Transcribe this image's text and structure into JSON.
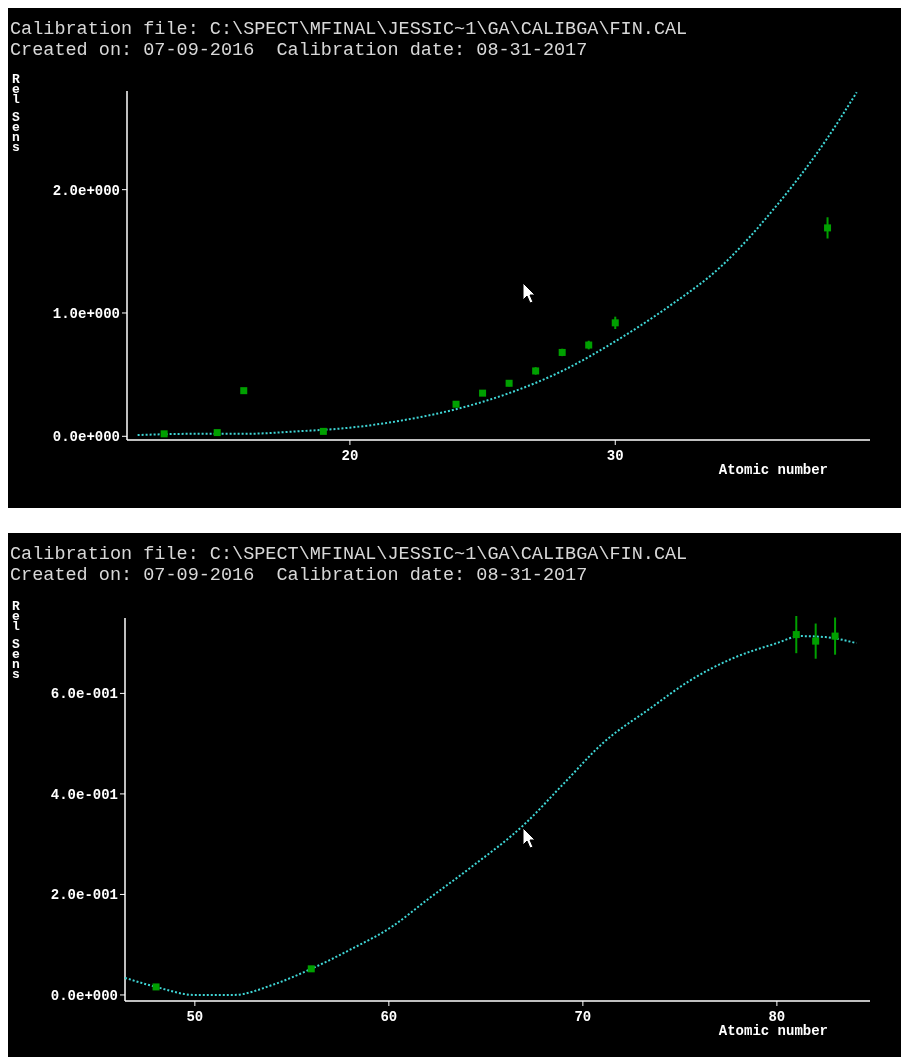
{
  "chart_data": [
    {
      "type": "scatter",
      "title": "Calibration file: C:\\SPECT\\MFINAL\\JESSIC~1\\GA\\CALIBGA\\FIN.CAL",
      "subtitle": "Created on: 07-09-2016  Calibration date: 08-31-2017",
      "xlabel": "Atomic number",
      "ylabel": "Rel Sens",
      "xlim": [
        11.6,
        39.6
      ],
      "xticks": [
        20,
        30
      ],
      "ylim": [
        -0.03,
        2.8
      ],
      "yticks": [
        {
          "value": 0,
          "label": "0.0e+000"
        },
        {
          "value": 1,
          "label": "1.0e+000"
        },
        {
          "value": 2,
          "label": "2.0e+000"
        }
      ],
      "grid": false,
      "series": [
        {
          "type": "line",
          "color": "#3fd6d6",
          "line_style": "dotted",
          "marker": "none",
          "x": [
            12,
            14,
            16,
            18,
            20,
            22,
            24,
            26,
            28,
            30,
            32,
            34,
            36,
            38,
            39.1
          ],
          "values": [
            0.01,
            0.02,
            0.02,
            0.04,
            0.07,
            0.13,
            0.22,
            0.35,
            0.53,
            0.77,
            1.05,
            1.38,
            1.85,
            2.42,
            2.79
          ]
        },
        {
          "color": "#00a000",
          "marker": "square",
          "x": [
            13,
            15,
            16,
            19,
            24,
            25,
            26,
            27,
            28,
            29,
            30,
            38
          ],
          "values": [
            0.02,
            0.03,
            0.37,
            0.04,
            0.26,
            0.35,
            0.43,
            0.53,
            0.68,
            0.74,
            0.92,
            1.69
          ],
          "errors": [
            null,
            null,
            0.02,
            null,
            null,
            0.02,
            0.025,
            0.03,
            0.03,
            0.035,
            0.05,
            0.086
          ]
        }
      ]
    },
    {
      "type": "scatter",
      "title": "Calibration file: C:\\SPECT\\MFINAL\\JESSIC~1\\GA\\CALIBGA\\FIN.CAL",
      "subtitle": "Created on: 07-09-2016  Calibration date: 08-31-2017",
      "xlabel": "Atomic number",
      "ylabel": "Rel Sens",
      "xlim": [
        46.4,
        84.8
      ],
      "xticks": [
        50,
        60,
        70,
        80
      ],
      "ylim": [
        -0.012,
        0.75
      ],
      "yticks": [
        {
          "value": 0,
          "label": "0.0e+000"
        },
        {
          "value": 0.2,
          "label": "2.0e-001"
        },
        {
          "value": 0.4,
          "label": "4.0e-001"
        },
        {
          "value": 0.6,
          "label": "6.0e-001"
        }
      ],
      "grid": false,
      "series": [
        {
          "type": "line",
          "color": "#3fd6d6",
          "line_style": "dotted",
          "marker": "none",
          "x": [
            46.4,
            48,
            50,
            52,
            54,
            56,
            58,
            60.2,
            62,
            64.2,
            67,
            69,
            71,
            73.5,
            75.5,
            77.8,
            80,
            81.2,
            82.5,
            84.1
          ],
          "values": [
            0.034,
            0.016,
            0.0,
            0.0,
            0.02,
            0.052,
            0.09,
            0.137,
            0.19,
            0.253,
            0.34,
            0.42,
            0.5,
            0.571,
            0.625,
            0.671,
            0.7,
            0.714,
            0.712,
            0.7
          ]
        },
        {
          "color": "#00a000",
          "marker": "square",
          "x": [
            48,
            56,
            81,
            82,
            83
          ],
          "values": [
            0.016,
            0.052,
            0.717,
            0.704,
            0.714
          ],
          "errors": [
            null,
            null,
            0.037,
            0.035,
            0.037
          ]
        }
      ]
    }
  ]
}
